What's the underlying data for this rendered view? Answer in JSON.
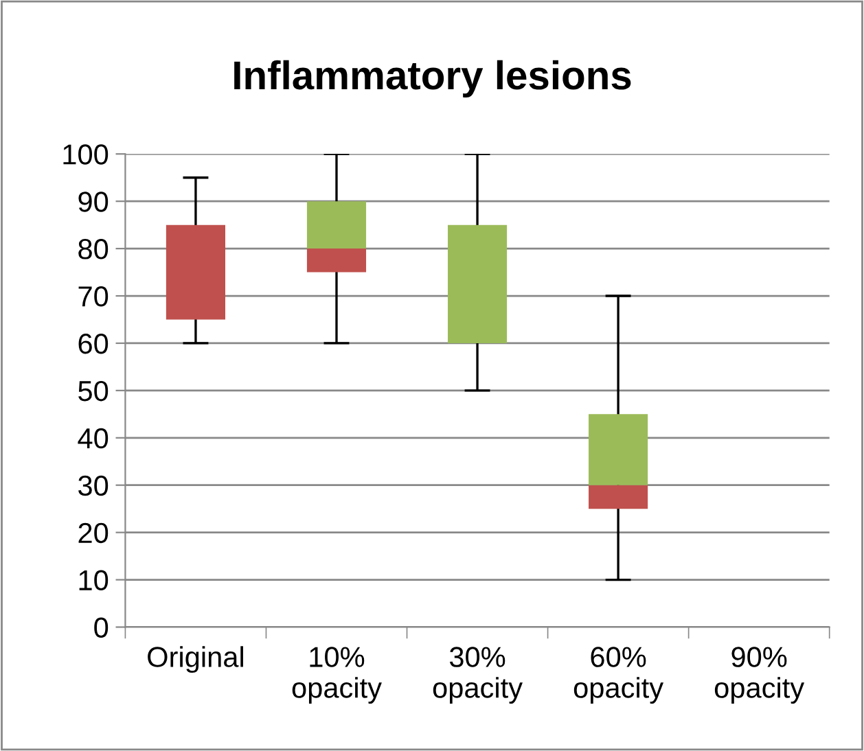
{
  "chart_data": {
    "type": "box",
    "title": "Inflammatory lesions",
    "categories": [
      "Original",
      "10%\nopacity",
      "30%\nopacity",
      "60%\nopacity",
      "90%\nopacity"
    ],
    "boxes": [
      {
        "low": 60,
        "q1": 65,
        "median": 85,
        "q3": 85,
        "high": 95
      },
      {
        "low": 60,
        "q1": 75,
        "median": 80,
        "q3": 90,
        "high": 100
      },
      {
        "low": 50,
        "q1": 60,
        "median": 60,
        "q3": 85,
        "high": 100
      },
      {
        "low": 10,
        "q1": 25,
        "median": 30,
        "q3": 45,
        "high": 70
      },
      null
    ],
    "colors": [
      [
        "#c0504d",
        "#9bbb59"
      ],
      [
        "#c0504d",
        "#9bbb59"
      ],
      [
        "#c0504d",
        "#9bbb59"
      ],
      [
        "#c0504d",
        "#9bbb59"
      ],
      null
    ],
    "ylim": [
      0,
      100
    ],
    "yticks": [
      0,
      10,
      20,
      30,
      40,
      50,
      60,
      70,
      80,
      90,
      100
    ],
    "grid": "y",
    "legend": false
  }
}
